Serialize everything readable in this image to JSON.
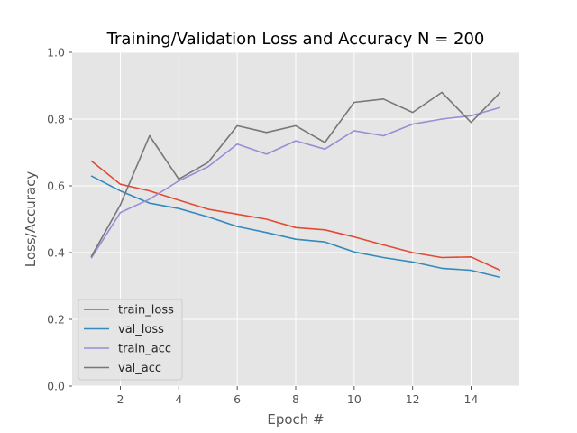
{
  "chart_data": {
    "type": "line",
    "title": "Training/Validation Loss and Accuracy N = 200",
    "xlabel": "Epoch #",
    "ylabel": "Loss/Accuracy",
    "xlim": [
      0.35,
      15.65
    ],
    "ylim": [
      0.0,
      1.0
    ],
    "xticks": [
      2,
      4,
      6,
      8,
      10,
      12,
      14
    ],
    "xtick_labels": [
      "2",
      "4",
      "6",
      "8",
      "10",
      "12",
      "14"
    ],
    "yticks": [
      0.0,
      0.2,
      0.4,
      0.6,
      0.8,
      1.0
    ],
    "ytick_labels": [
      "0.0",
      "0.2",
      "0.4",
      "0.6",
      "0.8",
      "1.0"
    ],
    "grid": true,
    "legend_position": "lower-left",
    "x": [
      1,
      2,
      3,
      4,
      5,
      6,
      7,
      8,
      9,
      10,
      11,
      12,
      13,
      14,
      15
    ],
    "series": [
      {
        "name": "train_loss",
        "color": "#E24A33",
        "values": [
          0.675,
          0.605,
          0.585,
          0.557,
          0.53,
          0.515,
          0.5,
          0.475,
          0.468,
          0.447,
          0.423,
          0.4,
          0.385,
          0.387,
          0.347
        ]
      },
      {
        "name": "val_loss",
        "color": "#348ABD",
        "values": [
          0.63,
          0.585,
          0.548,
          0.532,
          0.507,
          0.478,
          0.46,
          0.44,
          0.432,
          0.402,
          0.385,
          0.372,
          0.353,
          0.347,
          0.326
        ]
      },
      {
        "name": "train_acc",
        "color": "#988ED5",
        "values": [
          0.383,
          0.52,
          0.56,
          0.615,
          0.657,
          0.725,
          0.695,
          0.735,
          0.71,
          0.765,
          0.75,
          0.785,
          0.8,
          0.81,
          0.835
        ]
      },
      {
        "name": "val_acc",
        "color": "#777777",
        "values": [
          0.387,
          0.543,
          0.75,
          0.62,
          0.67,
          0.78,
          0.76,
          0.78,
          0.73,
          0.85,
          0.86,
          0.82,
          0.88,
          0.79,
          0.88
        ]
      }
    ]
  }
}
